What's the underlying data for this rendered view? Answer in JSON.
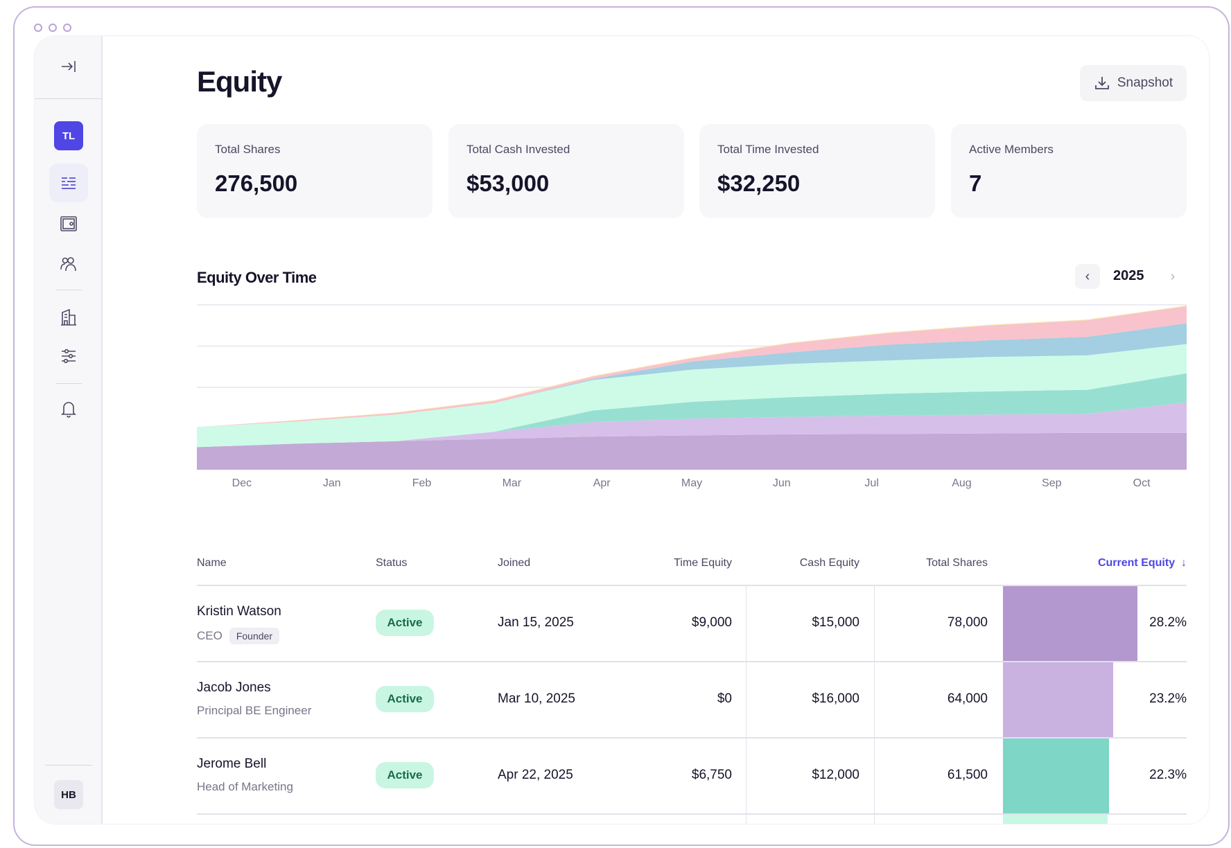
{
  "window": {
    "controls": [
      "dot",
      "dot",
      "dot"
    ]
  },
  "sidebar": {
    "collapse_icon": "collapse-right-icon",
    "workspace_avatar": "TL",
    "workspace_color": "#4f46e5",
    "items": [
      {
        "icon": "equity-list-icon",
        "active": true
      },
      {
        "icon": "safe-icon",
        "active": false
      },
      {
        "icon": "users-icon",
        "active": false
      },
      {
        "icon": "building-icon",
        "active": false
      },
      {
        "icon": "sliders-icon",
        "active": false
      },
      {
        "icon": "bell-icon",
        "active": false
      }
    ],
    "user_avatar": "HB"
  },
  "header": {
    "title": "Equity",
    "snapshot_label": "Snapshot",
    "snapshot_icon": "download-icon"
  },
  "stats": [
    {
      "label": "Total Shares",
      "value": "276,500"
    },
    {
      "label": "Total Cash Invested",
      "value": "$53,000"
    },
    {
      "label": "Total Time Invested",
      "value": "$32,250"
    },
    {
      "label": "Active Members",
      "value": "7"
    }
  ],
  "chart_section": {
    "title": "Equity Over Time",
    "year": "2025",
    "prev_icon": "chevron-left-icon",
    "next_icon": "chevron-right-icon"
  },
  "chart_data": {
    "type": "area",
    "stacked": true,
    "title": "Equity Over Time",
    "categories": [
      "Dec",
      "Jan",
      "Feb",
      "Mar",
      "Apr",
      "May",
      "Jun",
      "Jul",
      "Aug",
      "Sep",
      "Oct"
    ],
    "ylim": [
      0,
      100
    ],
    "grid": true,
    "y_axis_labels": false,
    "series": [
      {
        "color": "#c3a9d6",
        "values": [
          13.7,
          15.8,
          17.3,
          18.7,
          20.1,
          20.8,
          21.5,
          21.7,
          22.0,
          22.4,
          22.4
        ]
      },
      {
        "color": "#d6c0e9",
        "values": [
          0,
          0,
          0,
          4.3,
          8.8,
          10.2,
          10.6,
          11.1,
          11.5,
          11.5,
          18.5
        ]
      },
      {
        "color": "#97e0d1",
        "values": [
          0,
          0,
          0,
          0,
          7.0,
          10.2,
          11.9,
          13.3,
          14.0,
          14.6,
          17.6
        ]
      },
      {
        "color": "#cdfbe8",
        "values": [
          12.2,
          13.4,
          16.1,
          17.4,
          18.5,
          19.5,
          20.2,
          20.2,
          20.9,
          20.9,
          17.7
        ]
      },
      {
        "color": "#a4cee1",
        "values": [
          0,
          0,
          0,
          0,
          0.7,
          4.9,
          7.0,
          9.6,
          10.1,
          11.2,
          12.6
        ]
      },
      {
        "color": "#f8c3cd",
        "values": [
          0,
          0.7,
          1.0,
          1.4,
          1.4,
          2.0,
          5.5,
          7.1,
          9.0,
          10.1,
          10.4
        ]
      },
      {
        "color": "#fbe6a6",
        "values": [
          0,
          0.2,
          0.3,
          0.4,
          0.4,
          0.4,
          0.4,
          0.4,
          0.4,
          0.4,
          0.4
        ]
      }
    ]
  },
  "table": {
    "columns": [
      "Name",
      "Status",
      "Joined",
      "Time Equity",
      "Cash Equity",
      "Total Shares",
      "Current Equity"
    ],
    "sort_icon": "arrow-down-icon",
    "accent": "#4f46e5",
    "rows": [
      {
        "name": "Kristin Watson",
        "role": "CEO",
        "tag": "Founder",
        "status": "Active",
        "joined": "Jan 15, 2025",
        "time_equity": "$9,000",
        "cash_equity": "$15,000",
        "total_shares": "78,000",
        "current_equity": "28.2%",
        "equity_pct": 28.2,
        "bar_color": "#b398cf"
      },
      {
        "name": "Jacob Jones",
        "role": "Principal BE Engineer",
        "status": "Active",
        "joined": "Mar 10, 2025",
        "time_equity": "$0",
        "cash_equity": "$16,000",
        "total_shares": "64,000",
        "current_equity": "23.2%",
        "equity_pct": 23.2,
        "bar_color": "#c9b1e0"
      },
      {
        "name": "Jerome Bell",
        "role": "Head of Marketing",
        "status": "Active",
        "joined": "Apr 22, 2025",
        "time_equity": "$6,750",
        "cash_equity": "$12,000",
        "total_shares": "61,500",
        "current_equity": "22.3%",
        "equity_pct": 22.3,
        "bar_color": "#7dd6c6"
      }
    ]
  }
}
